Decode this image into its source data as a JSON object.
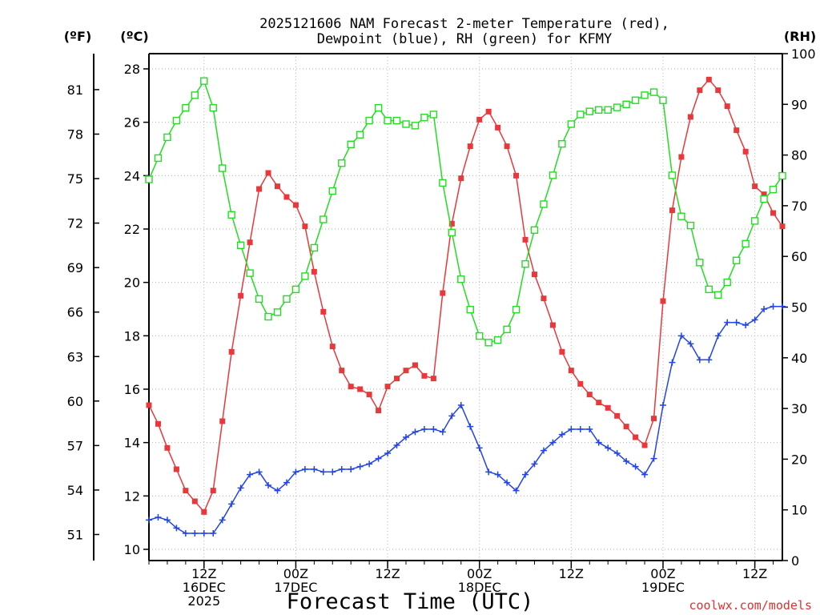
{
  "chart_data": {
    "type": "line",
    "title_line1": "2025121606 NAM Forecast 2-meter Temperature (red),",
    "title_line2": "Dewpoint (blue), RH (green) for KFMY",
    "xlabel": "Forecast Time (UTC)",
    "credit": "coolwx.com/models",
    "left_axis_f": {
      "unit": "(ºF)",
      "ticks": [
        "51",
        "54",
        "57",
        "60",
        "63",
        "66",
        "69",
        "72",
        "75",
        "78",
        "81"
      ]
    },
    "left_axis_c": {
      "unit": "(ºC)",
      "ylim": [
        10,
        28
      ],
      "ticks": [
        "10",
        "12",
        "14",
        "16",
        "18",
        "20",
        "22",
        "24",
        "26",
        "28"
      ]
    },
    "right_axis": {
      "unit": "(RH)",
      "ylim": [
        0,
        100
      ],
      "ticks": [
        "0",
        "10",
        "20",
        "30",
        "40",
        "50",
        "60",
        "70",
        "80",
        "90",
        "100"
      ]
    },
    "x_range_hours": [
      6,
      75
    ],
    "x_ticks": [
      {
        "hour": 12,
        "lines": [
          "12Z",
          "16DEC",
          "2025"
        ]
      },
      {
        "hour": 22,
        "lines": [
          "00Z",
          "17DEC"
        ]
      },
      {
        "hour": 32,
        "lines": [
          "12Z"
        ]
      },
      {
        "hour": 42,
        "lines": [
          "00Z",
          "18DEC"
        ]
      },
      {
        "hour": 52,
        "lines": [
          "12Z"
        ]
      },
      {
        "hour": 62,
        "lines": [
          "00Z",
          "19DEC"
        ]
      },
      {
        "hour": 72,
        "lines": [
          "12Z"
        ]
      }
    ],
    "series": [
      {
        "name": "Temperature",
        "axis": "C",
        "color": "#e8383c",
        "marker": "filled-square",
        "x": [
          6,
          7,
          8,
          9,
          10,
          11,
          12,
          13,
          14,
          15,
          16,
          17,
          18,
          19,
          20,
          21,
          22,
          23,
          24,
          25,
          26,
          27,
          28,
          29,
          30,
          31,
          32,
          33,
          34,
          35,
          36,
          37,
          38,
          39,
          40,
          41,
          42,
          43,
          44,
          45,
          46,
          47,
          48,
          49,
          50,
          51,
          52,
          53,
          54,
          55,
          56,
          57,
          58,
          59,
          60,
          61,
          62,
          63,
          64,
          65,
          66,
          67,
          68,
          69,
          70,
          71,
          72,
          73,
          74,
          75
        ],
        "values": [
          15.4,
          14.7,
          13.8,
          13.0,
          12.2,
          11.8,
          11.4,
          12.2,
          14.8,
          17.4,
          19.5,
          21.5,
          23.5,
          24.1,
          23.6,
          23.2,
          22.9,
          22.1,
          20.4,
          18.9,
          17.6,
          16.7,
          16.1,
          16.0,
          15.8,
          15.2,
          16.1,
          16.4,
          16.7,
          16.9,
          16.5,
          16.4,
          19.6,
          22.2,
          23.9,
          25.1,
          26.1,
          26.4,
          25.8,
          25.1,
          24.0,
          21.6,
          20.3,
          19.4,
          18.4,
          17.4,
          16.7,
          16.2,
          15.8,
          15.5,
          15.3,
          15.0,
          14.6,
          14.2,
          13.9,
          14.9,
          19.3,
          22.7,
          24.7,
          26.2,
          27.2,
          27.6,
          27.2,
          26.6,
          25.7,
          24.9,
          23.6,
          23.3,
          22.6,
          22.1
        ]
      },
      {
        "name": "Dewpoint",
        "axis": "C",
        "color": "#2244e8",
        "marker": "plus",
        "x": [
          6,
          7,
          8,
          9,
          10,
          11,
          12,
          13,
          14,
          15,
          16,
          17,
          18,
          19,
          20,
          21,
          22,
          23,
          24,
          25,
          26,
          27,
          28,
          29,
          30,
          31,
          32,
          33,
          34,
          35,
          36,
          37,
          38,
          39,
          40,
          41,
          42,
          43,
          44,
          45,
          46,
          47,
          48,
          49,
          50,
          51,
          52,
          53,
          54,
          55,
          56,
          57,
          58,
          59,
          60,
          61,
          62,
          63,
          64,
          65,
          66,
          67,
          68,
          69,
          70,
          71,
          72,
          73,
          74,
          75
        ],
        "values": [
          11.1,
          11.2,
          11.1,
          10.8,
          10.6,
          10.6,
          10.6,
          10.6,
          11.1,
          11.7,
          12.3,
          12.8,
          12.9,
          12.4,
          12.2,
          12.5,
          12.9,
          13.0,
          13.0,
          12.9,
          12.9,
          13.0,
          13.0,
          13.1,
          13.2,
          13.4,
          13.6,
          13.9,
          14.2,
          14.4,
          14.5,
          14.5,
          14.4,
          15.0,
          15.4,
          14.6,
          13.8,
          12.9,
          12.8,
          12.5,
          12.2,
          12.8,
          13.2,
          13.7,
          14.0,
          14.3,
          14.5,
          14.5,
          14.5,
          14.0,
          13.8,
          13.6,
          13.3,
          13.1,
          12.8,
          13.4,
          15.4,
          17.0,
          18.0,
          17.7,
          17.1,
          17.1,
          18.0,
          18.5,
          18.5,
          18.4,
          18.6,
          19.0,
          19.1,
          19.1
        ]
      },
      {
        "name": "RH",
        "axis": "RH",
        "color": "#22dd22",
        "marker": "open-square",
        "x": [
          6,
          7,
          8,
          9,
          10,
          11,
          12,
          13,
          14,
          15,
          16,
          17,
          18,
          19,
          20,
          21,
          22,
          23,
          24,
          25,
          26,
          27,
          28,
          29,
          30,
          31,
          32,
          33,
          34,
          35,
          36,
          37,
          38,
          39,
          40,
          41,
          42,
          43,
          44,
          45,
          46,
          47,
          48,
          49,
          50,
          51,
          52,
          53,
          54,
          55,
          56,
          57,
          58,
          59,
          60,
          61,
          62,
          63,
          64,
          65,
          66,
          67,
          68,
          69,
          70,
          71,
          72,
          73,
          74,
          75
        ],
        "values": [
          75.2,
          79.4,
          83.5,
          86.8,
          89.3,
          91.8,
          94.6,
          89.3,
          77.4,
          68.2,
          62.2,
          56.7,
          51.6,
          48.1,
          49.0,
          51.6,
          53.5,
          56.1,
          61.7,
          67.3,
          72.9,
          78.4,
          82.1,
          84.0,
          86.8,
          89.3,
          86.8,
          86.8,
          86.1,
          85.8,
          87.4,
          88.0,
          74.5,
          64.7,
          55.5,
          49.5,
          44.3,
          43.0,
          43.5,
          45.6,
          49.5,
          58.5,
          65.2,
          70.3,
          76.0,
          82.2,
          86.1,
          88.0,
          88.6,
          88.9,
          88.9,
          89.4,
          90.0,
          90.8,
          91.8,
          92.4,
          90.8,
          76.0,
          67.9,
          66.1,
          58.8,
          53.5,
          52.4,
          54.9,
          59.2,
          62.5,
          67.0,
          71.3,
          73.2,
          75.9
        ]
      }
    ]
  }
}
